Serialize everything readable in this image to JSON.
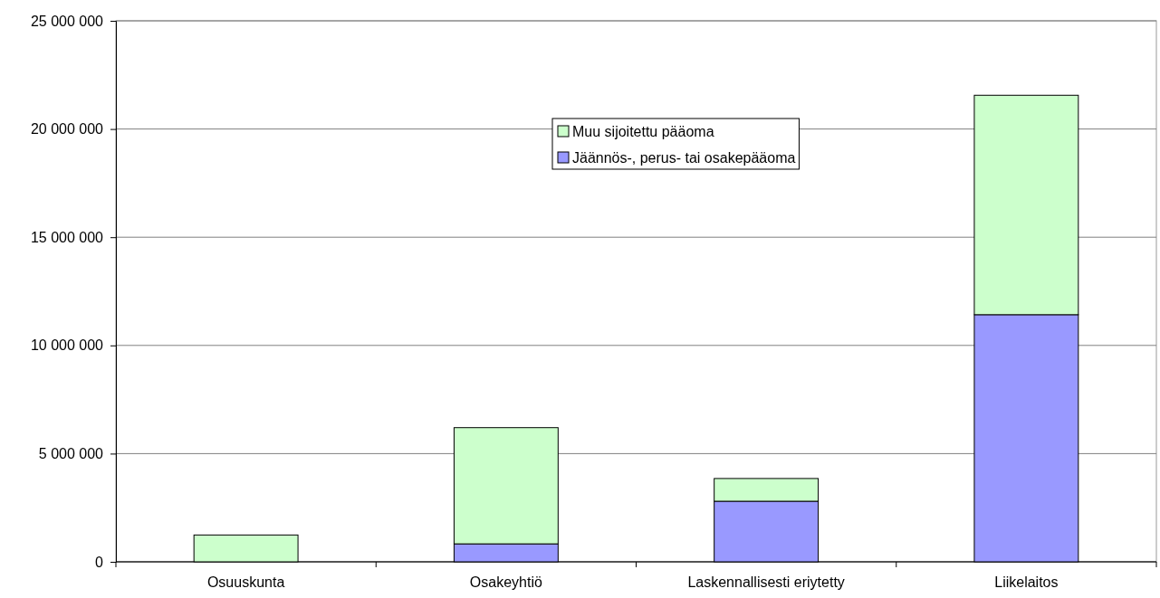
{
  "chart_data": {
    "type": "bar",
    "stacked": true,
    "categories": [
      "Osuuskunta",
      "Osakeyhtiö",
      "Laskennallisesti eriytetty",
      "Liikelaitos"
    ],
    "series": [
      {
        "name": "Jäännös-, perus- tai osakepääoma",
        "color": "#9999ff",
        "values": [
          0,
          830000,
          2800000,
          11420000
        ]
      },
      {
        "name": "Muu sijoitettu pääoma",
        "color": "#ccffcc",
        "values": [
          1240000,
          5370000,
          1050000,
          10140000
        ]
      }
    ],
    "ylim": [
      0,
      25000000
    ],
    "yticks": [
      {
        "value": 0,
        "label": "0"
      },
      {
        "value": 5000000,
        "label": "5 000 000"
      },
      {
        "value": 10000000,
        "label": "10 000 000"
      },
      {
        "value": 15000000,
        "label": "15 000 000"
      },
      {
        "value": 20000000,
        "label": "20 000 000"
      },
      {
        "value": 25000000,
        "label": "25 000 000"
      }
    ],
    "grid": "y",
    "legend": "top"
  }
}
